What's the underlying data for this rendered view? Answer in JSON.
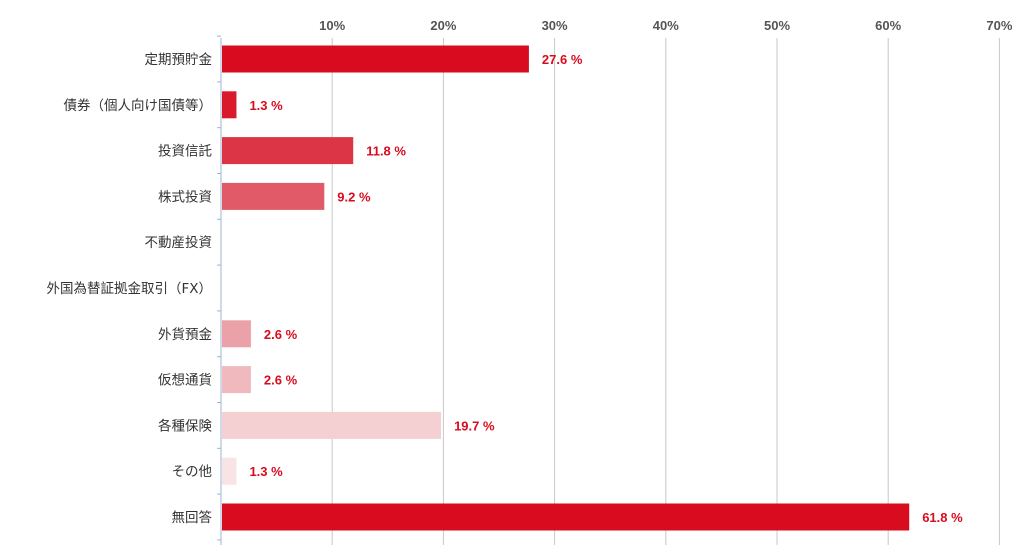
{
  "chart_data": {
    "type": "bar",
    "orientation": "horizontal",
    "categories": [
      "定期預貯金",
      "債券（個人向け国債等）",
      "投資信託",
      "株式投資",
      "不動産投資",
      "外国為替証拠金取引（FX）",
      "外貨預金",
      "仮想通貨",
      "各種保険",
      "その他",
      "無回答"
    ],
    "values": [
      27.6,
      1.3,
      11.8,
      9.2,
      null,
      null,
      2.6,
      2.6,
      19.7,
      1.3,
      61.8
    ],
    "value_labels": [
      "27.6 %",
      "1.3 %",
      "11.8 %",
      "9.2 %",
      "",
      "",
      "2.6 %",
      "2.6 %",
      "19.7 %",
      "1.3 %",
      "61.8 %"
    ],
    "xticks": [
      10,
      20,
      30,
      40,
      50,
      60,
      70
    ],
    "xtick_labels": [
      "10%",
      "20%",
      "30%",
      "40%",
      "50%",
      "60%",
      "70%"
    ],
    "xlim": [
      0,
      70
    ],
    "title": "",
    "xlabel": "",
    "ylabel": "",
    "axis_position": "top",
    "grid": true,
    "legend": "none",
    "bar_colors": [
      "#d90b1e",
      "#d91a2c",
      "#dc3646",
      "#e05a67",
      "#e37a85",
      "#e8949c",
      "#eba1a8",
      "#efb9bd",
      "#f4d0d3",
      "#f8e4e5",
      "#d90b1e"
    ],
    "label_color": "#d90b1e",
    "grid_color": "#c8c8c8",
    "axis_color": "#9db4d6"
  }
}
